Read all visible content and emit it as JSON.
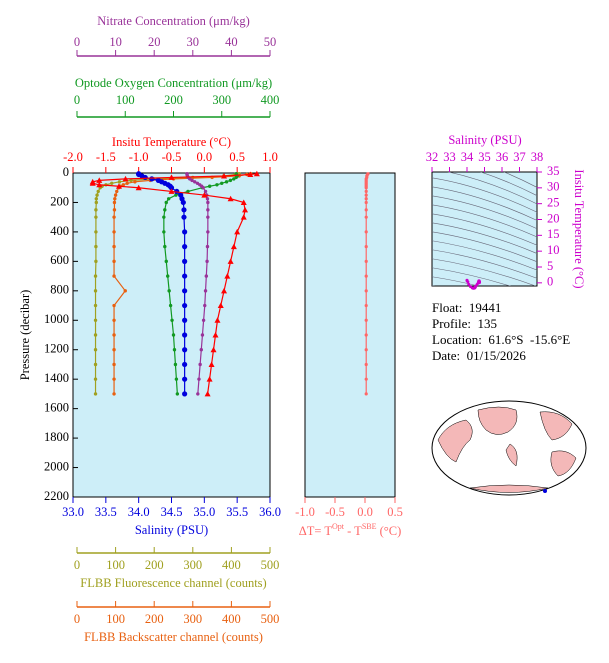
{
  "chart_data": [
    {
      "type": "profile",
      "ylabel": "Pressure (decibar)",
      "ylim": [
        0,
        2200
      ],
      "yticks": [
        0,
        200,
        400,
        600,
        800,
        1000,
        1200,
        1400,
        1600,
        1800,
        2000,
        2200
      ],
      "pressure": [
        5,
        10,
        20,
        30,
        40,
        50,
        60,
        70,
        80,
        90,
        100,
        125,
        150,
        175,
        200,
        250,
        300,
        400,
        500,
        600,
        700,
        800,
        900,
        1000,
        1100,
        1200,
        1300,
        1400,
        1500
      ],
      "axes": [
        {
          "title": "Nitrate Concentration (μm/kg)",
          "color": "#993399",
          "marker": "dot",
          "xlim": [
            0,
            50
          ],
          "xticks": [
            0,
            10,
            20,
            30,
            40,
            50
          ],
          "values": [
            28.5,
            28.5,
            28.6,
            28.8,
            29.2,
            29.8,
            30.5,
            31.2,
            31.8,
            32.3,
            32.7,
            33.3,
            33.6,
            33.8,
            33.9,
            33.9,
            33.9,
            33.9,
            33.8,
            33.7,
            33.5,
            33.3,
            33.1,
            32.8,
            32.5,
            32.2,
            31.9,
            31.6,
            31.3
          ]
        },
        {
          "title": "Optode Oxygen Concentration (μm/kg)",
          "color": "#119922",
          "marker": "dot",
          "xlim": [
            0,
            400
          ],
          "xticks": [
            0,
            100,
            200,
            300,
            400
          ],
          "values": [
            330,
            330,
            332,
            330,
            325,
            318,
            310,
            300,
            290,
            275,
            260,
            230,
            205,
            190,
            185,
            182,
            180,
            180,
            182,
            185,
            188,
            191,
            194,
            197,
            200,
            202,
            204,
            206,
            208
          ]
        },
        {
          "title": "Insitu Temperature (°C)",
          "color": "#ff0000",
          "marker": "triangle",
          "xlim": [
            -2,
            1
          ],
          "xticks": [
            {
              "value": -2,
              "label": "-2.0"
            },
            {
              "value": -1.5,
              "label": "-1.5"
            },
            {
              "value": -1,
              "label": "-1.0"
            },
            {
              "value": -0.5,
              "label": "-0.5"
            },
            {
              "value": 0,
              "label": "0.0"
            },
            0.5,
            {
              "value": 1,
              "label": "1.0"
            }
          ],
          "values": [
            0.8,
            0.7,
            0.3,
            -0.5,
            -1.2,
            -1.6,
            -1.7,
            -1.7,
            -1.6,
            -1.3,
            -1.0,
            -0.5,
            0.0,
            0.4,
            0.6,
            0.62,
            0.6,
            0.5,
            0.45,
            0.4,
            0.35,
            0.3,
            0.25,
            0.2,
            0.17,
            0.14,
            0.11,
            0.08,
            0.05
          ]
        },
        {
          "title": "Salinity (PSU)",
          "color": "#0000dd",
          "marker": "circle",
          "xlim": [
            33,
            36
          ],
          "xticks": [
            {
              "value": 33,
              "label": "33.0"
            },
            33.5,
            {
              "value": 34,
              "label": "34.0"
            },
            34.5,
            {
              "value": 35,
              "label": "35.0"
            },
            35.5,
            {
              "value": 36,
              "label": "36.0"
            }
          ],
          "values": [
            34.0,
            34.0,
            34.05,
            34.1,
            34.2,
            34.3,
            34.35,
            34.4,
            34.45,
            34.48,
            34.5,
            34.58,
            34.64,
            34.66,
            34.68,
            34.69,
            34.69,
            34.7,
            34.7,
            34.7,
            34.7,
            34.7,
            34.7,
            34.7,
            34.7,
            34.7,
            34.7,
            34.7,
            34.7
          ]
        },
        {
          "title": "FLBB Fluorescence channel (counts)",
          "color": "#a0a020",
          "marker": "dot",
          "xlim": [
            0,
            500
          ],
          "xticks": [
            0,
            100,
            200,
            300,
            400,
            500
          ],
          "values": [
            420,
            410,
            380,
            300,
            200,
            140,
            110,
            90,
            75,
            65,
            60,
            55,
            52,
            50,
            50,
            49,
            49,
            49,
            49,
            49,
            48,
            48,
            48,
            48,
            48,
            48,
            48,
            48,
            48
          ]
        },
        {
          "title": "FLBB Backscatter channel (counts)",
          "color": "#e86010",
          "marker": "dot",
          "xlim": [
            0,
            500
          ],
          "xticks": [
            0,
            100,
            200,
            300,
            400,
            500
          ],
          "values": [
            450,
            440,
            420,
            350,
            250,
            190,
            150,
            130,
            120,
            112,
            108,
            103,
            100,
            98,
            97,
            97,
            96,
            96,
            96,
            96,
            96,
            125,
            96,
            96,
            96,
            96,
            96,
            96,
            96
          ]
        }
      ]
    },
    {
      "type": "delta",
      "label_parts": [
        "ΔT= T",
        "Opt",
        " - T",
        "SBE",
        " (°C)"
      ],
      "color": "#ff6666",
      "xlim": [
        -1,
        0.5
      ],
      "xticks": [
        {
          "value": -1,
          "label": "-1.0"
        },
        -0.5,
        {
          "value": 0,
          "label": "0.0"
        },
        0.5
      ],
      "values": [
        0.05,
        0.04,
        0.03,
        0.03,
        0.02,
        0.02,
        0.02,
        0.02,
        0.02,
        0.02,
        0.02,
        0.02,
        0.02,
        0.02,
        0.02,
        0.02,
        0.02,
        0.02,
        0.02,
        0.02,
        0.02,
        0.02,
        0.02,
        0.02,
        0.02,
        0.02,
        0.02,
        0.02,
        0.02
      ]
    },
    {
      "type": "ts",
      "xlabel": "Salinity (PSU)",
      "ylabel": "Insitu Temperature (°C)",
      "color": "#cc00cc",
      "xlim": [
        32,
        38
      ],
      "xticks": [
        32,
        33,
        34,
        35,
        36,
        37,
        38
      ],
      "ylim": [
        -1,
        35
      ],
      "yticks": [
        0,
        5,
        10,
        15,
        20,
        25,
        30,
        35
      ]
    }
  ],
  "info": {
    "float": "Float:  19441",
    "profile": "Profile:  135",
    "location": "Location:  61.6°S  -15.6°E",
    "date": "Date:  01/15/2026"
  }
}
